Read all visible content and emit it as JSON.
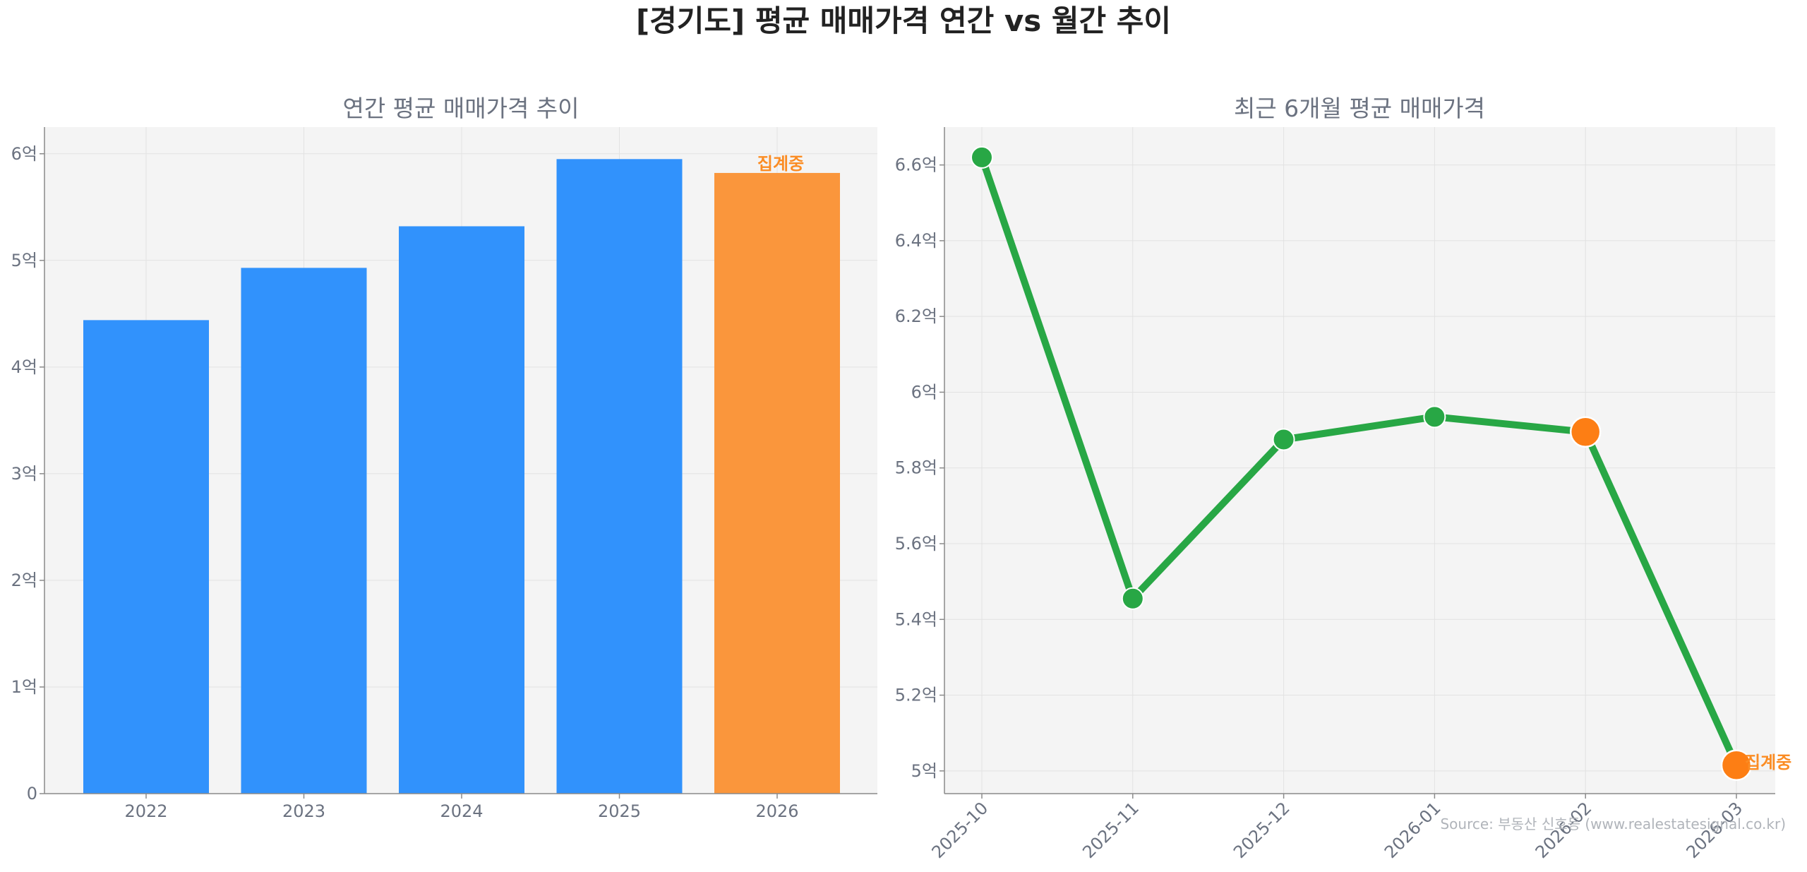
{
  "suptitle": "[경기도] 평균 매매가격 연간 vs 월간 추이",
  "source": "Source: 부동산 신호등 (www.realestatesignal.co.kr)",
  "colors": {
    "bar": "#3192fc",
    "highlight_bar": "#fa963c",
    "line": "#28a745",
    "highlight_point": "#fd7e14",
    "note": "#fb8c23",
    "panel_bg": "#f4f4f4",
    "grid": "#e2e2e2"
  },
  "chart_data": [
    {
      "type": "bar",
      "title": "연간 평균 매매가격 추이",
      "xlabel": "",
      "ylabel": "",
      "categories": [
        "2022",
        "2023",
        "2024",
        "2025",
        "2026"
      ],
      "values": [
        4.44,
        4.93,
        5.32,
        5.95,
        5.82
      ],
      "unit": "억",
      "ylim": [
        0,
        6.25
      ],
      "yticks": [
        0,
        1,
        2,
        3,
        4,
        5,
        6
      ],
      "ytick_labels": [
        "0",
        "1억",
        "2억",
        "3억",
        "4억",
        "5억",
        "6억"
      ],
      "highlight_index": 4,
      "highlight_label": "집계중",
      "grid": true
    },
    {
      "type": "line",
      "title": "최근 6개월 평균 매매가격",
      "xlabel": "",
      "ylabel": "",
      "categories": [
        "2025-10",
        "2025-11",
        "2025-12",
        "2026-01",
        "2026-02",
        "2026-03"
      ],
      "values": [
        6.62,
        5.455,
        5.875,
        5.935,
        5.895,
        5.015
      ],
      "unit": "억",
      "ylim": [
        4.94,
        6.7
      ],
      "yticks": [
        5.0,
        5.2,
        5.4,
        5.6,
        5.8,
        6.0,
        6.2,
        6.4,
        6.6
      ],
      "ytick_labels": [
        "5억",
        "5.2억",
        "5.4억",
        "5.6억",
        "5.8억",
        "6억",
        "6.2억",
        "6.4억",
        "6.6억"
      ],
      "highlight_indices": [
        4,
        5
      ],
      "highlight_label": "집계중",
      "grid": true
    }
  ]
}
